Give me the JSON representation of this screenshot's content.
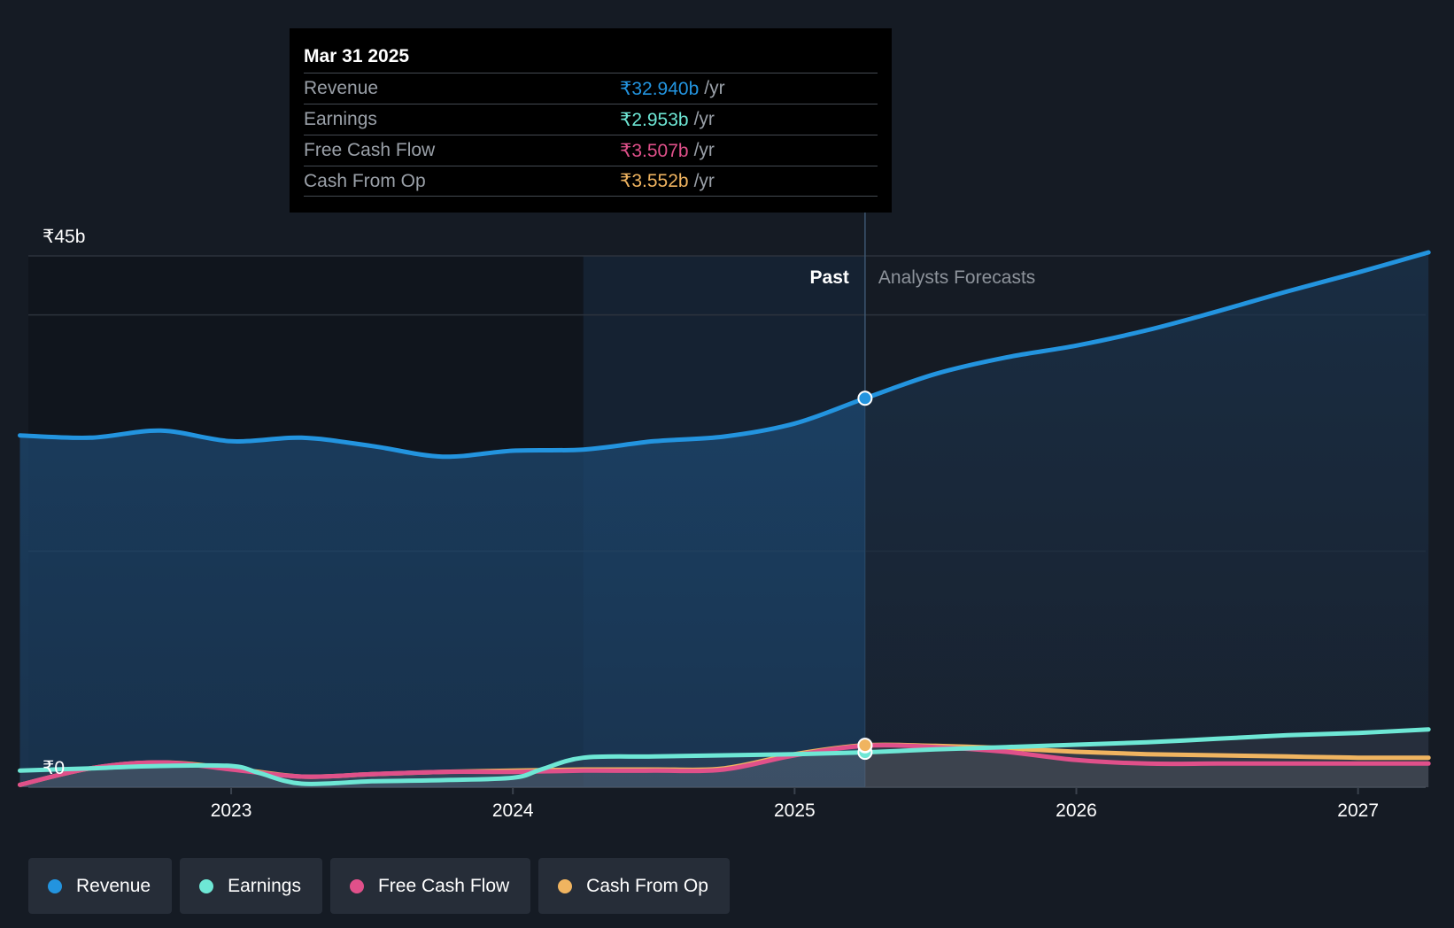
{
  "tooltip": {
    "date": "Mar 31 2025",
    "rows": [
      {
        "label": "Revenue",
        "value": "₹32.940b",
        "unit": "/yr",
        "color": "#2394df"
      },
      {
        "label": "Earnings",
        "value": "₹2.953b",
        "unit": "/yr",
        "color": "#6ee7d5"
      },
      {
        "label": "Free Cash Flow",
        "value": "₹3.507b",
        "unit": "/yr",
        "color": "#e0508a"
      },
      {
        "label": "Cash From Op",
        "value": "₹3.552b",
        "unit": "/yr",
        "color": "#f0b460"
      }
    ]
  },
  "legend": [
    {
      "label": "Revenue",
      "color": "#2394df"
    },
    {
      "label": "Earnings",
      "color": "#6ee7d5"
    },
    {
      "label": "Free Cash Flow",
      "color": "#e0508a"
    },
    {
      "label": "Cash From Op",
      "color": "#f0b460"
    }
  ],
  "chart_data": {
    "type": "line",
    "title": "",
    "xlabel": "",
    "ylabel": "",
    "ylim": [
      0,
      45
    ],
    "xlim": [
      2022.28,
      2027.24
    ],
    "y_unit": "₹b",
    "y_tick_labels": [
      {
        "value": 45,
        "label": "₹45b"
      },
      {
        "value": 0,
        "label": "₹0"
      }
    ],
    "gridlines": [
      45,
      40,
      20,
      0
    ],
    "x_ticks": [
      {
        "value": 2023,
        "label": "2023"
      },
      {
        "value": 2024,
        "label": "2024"
      },
      {
        "value": 2025,
        "label": "2025"
      },
      {
        "value": 2026,
        "label": "2026"
      },
      {
        "value": 2027,
        "label": "2027"
      }
    ],
    "past_label": "Past",
    "forecast_label": "Analysts Forecasts",
    "highlight_range": [
      2024.25,
      2025.25
    ],
    "divider_x": 2025.25,
    "series": [
      {
        "name": "Revenue",
        "color": "#2394df",
        "points": [
          [
            2022.25,
            29.8
          ],
          [
            2022.5,
            29.6
          ],
          [
            2022.75,
            30.2
          ],
          [
            2023.0,
            29.3
          ],
          [
            2023.25,
            29.6
          ],
          [
            2023.5,
            28.9
          ],
          [
            2023.75,
            28.0
          ],
          [
            2024.0,
            28.5
          ],
          [
            2024.25,
            28.6
          ],
          [
            2024.5,
            29.3
          ],
          [
            2024.75,
            29.7
          ],
          [
            2025.0,
            30.8
          ],
          [
            2025.25,
            32.94
          ],
          [
            2025.5,
            35.0
          ],
          [
            2025.75,
            36.4
          ],
          [
            2026.0,
            37.4
          ],
          [
            2026.25,
            38.7
          ],
          [
            2026.5,
            40.3
          ],
          [
            2026.75,
            42.0
          ],
          [
            2027.0,
            43.6
          ],
          [
            2027.25,
            45.3
          ]
        ]
      },
      {
        "name": "Earnings",
        "color": "#6ee7d5",
        "points": [
          [
            2022.25,
            1.4
          ],
          [
            2022.5,
            1.6
          ],
          [
            2022.75,
            1.8
          ],
          [
            2023.0,
            1.8
          ],
          [
            2023.1,
            1.2
          ],
          [
            2023.25,
            0.3
          ],
          [
            2023.5,
            0.5
          ],
          [
            2023.75,
            0.6
          ],
          [
            2024.0,
            0.8
          ],
          [
            2024.1,
            1.5
          ],
          [
            2024.25,
            2.5
          ],
          [
            2024.5,
            2.6
          ],
          [
            2024.75,
            2.7
          ],
          [
            2025.0,
            2.8
          ],
          [
            2025.25,
            2.953
          ],
          [
            2025.5,
            3.2
          ],
          [
            2025.75,
            3.4
          ],
          [
            2026.0,
            3.6
          ],
          [
            2026.25,
            3.8
          ],
          [
            2026.5,
            4.1
          ],
          [
            2026.75,
            4.4
          ],
          [
            2027.0,
            4.6
          ],
          [
            2027.25,
            4.9
          ]
        ]
      },
      {
        "name": "Free Cash Flow",
        "color": "#e0508a",
        "points": [
          [
            2022.25,
            0.2
          ],
          [
            2022.5,
            1.6
          ],
          [
            2022.75,
            2.1
          ],
          [
            2023.0,
            1.5
          ],
          [
            2023.25,
            0.9
          ],
          [
            2023.5,
            1.1
          ],
          [
            2023.75,
            1.3
          ],
          [
            2024.0,
            1.3
          ],
          [
            2024.25,
            1.4
          ],
          [
            2024.5,
            1.4
          ],
          [
            2024.75,
            1.5
          ],
          [
            2025.0,
            2.7
          ],
          [
            2025.25,
            3.507
          ],
          [
            2025.5,
            3.4
          ],
          [
            2025.75,
            3.0
          ],
          [
            2026.0,
            2.3
          ],
          [
            2026.25,
            2.0
          ],
          [
            2026.5,
            2.0
          ],
          [
            2026.75,
            2.0
          ],
          [
            2027.0,
            2.0
          ],
          [
            2027.25,
            2.0
          ]
        ]
      },
      {
        "name": "Cash From Op",
        "color": "#f0b460",
        "points": [
          [
            2022.25,
            0.2
          ],
          [
            2022.5,
            1.6
          ],
          [
            2022.75,
            2.1
          ],
          [
            2023.0,
            1.6
          ],
          [
            2023.25,
            0.9
          ],
          [
            2023.5,
            1.1
          ],
          [
            2023.75,
            1.3
          ],
          [
            2024.0,
            1.4
          ],
          [
            2024.25,
            1.5
          ],
          [
            2024.5,
            1.5
          ],
          [
            2024.75,
            1.6
          ],
          [
            2025.0,
            2.8
          ],
          [
            2025.25,
            3.552
          ],
          [
            2025.5,
            3.5
          ],
          [
            2025.75,
            3.3
          ],
          [
            2026.0,
            3.0
          ],
          [
            2026.25,
            2.8
          ],
          [
            2026.5,
            2.7
          ],
          [
            2026.75,
            2.6
          ],
          [
            2027.0,
            2.5
          ],
          [
            2027.25,
            2.5
          ]
        ]
      }
    ]
  }
}
